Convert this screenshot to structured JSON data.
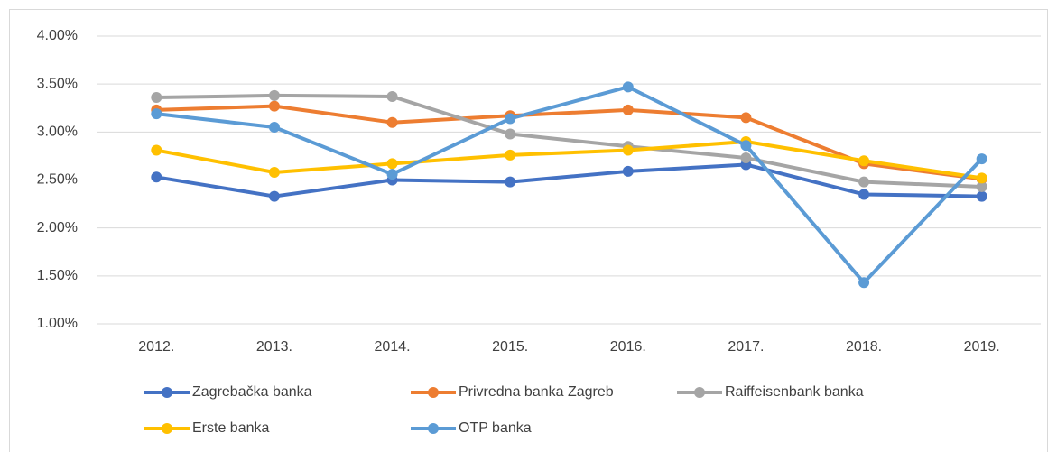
{
  "chart_data": {
    "type": "line",
    "categories": [
      "2012.",
      "2013.",
      "2014.",
      "2015.",
      "2016.",
      "2017.",
      "2018.",
      "2019."
    ],
    "series": [
      {
        "name": "Zagrebačka banka",
        "color": "#4472c4",
        "values": [
          2.53,
          2.33,
          2.5,
          2.48,
          2.59,
          2.66,
          2.35,
          2.33
        ]
      },
      {
        "name": "Privredna banka Zagreb",
        "color": "#ed7d31",
        "values": [
          3.23,
          3.27,
          3.1,
          3.17,
          3.23,
          3.15,
          2.67,
          2.51
        ]
      },
      {
        "name": "Raiffeisenbank banka",
        "color": "#a5a5a5",
        "values": [
          3.36,
          3.38,
          3.37,
          2.98,
          2.85,
          2.73,
          2.48,
          2.43
        ]
      },
      {
        "name": "Erste banka",
        "color": "#ffc000",
        "values": [
          2.81,
          2.58,
          2.67,
          2.76,
          2.81,
          2.9,
          2.7,
          2.52
        ]
      },
      {
        "name": "OTP banka",
        "color": "#5b9bd5",
        "values": [
          3.19,
          3.05,
          2.56,
          3.14,
          3.47,
          2.86,
          1.43,
          2.72
        ]
      }
    ],
    "ylim": [
      1,
      4
    ],
    "yticks": [
      {
        "value": 1,
        "label": "1.00%"
      },
      {
        "value": 1.5,
        "label": "1.50%"
      },
      {
        "value": 2,
        "label": "2.00%"
      },
      {
        "value": 2.5,
        "label": "2.50%"
      },
      {
        "value": 3,
        "label": "3.00%"
      },
      {
        "value": 3.5,
        "label": "3.50%"
      },
      {
        "value": 4,
        "label": "4.00%"
      }
    ],
    "grid": true,
    "legend": "bottom"
  }
}
